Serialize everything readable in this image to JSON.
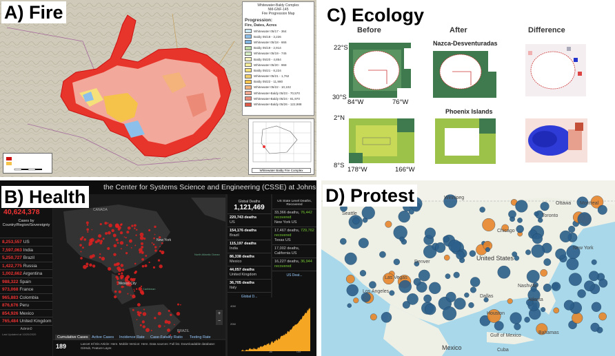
{
  "panels": {
    "fire": {
      "label": "A)  Fire",
      "legend_title": [
        "Whitewater-Baldy Complex",
        "NM-GNF-145",
        "Fire Progression Map"
      ],
      "progression_title": "Progression:",
      "progression_sub": "Fire, Dates, Acres",
      "progression": [
        {
          "text": "Whitewater 05/17 - 364",
          "color": "#cde8f5"
        },
        {
          "text": "Baldy 05/18 - 3,226",
          "color": "#8cc0ea"
        },
        {
          "text": "Whitewater 05/18 - 666",
          "color": "#7fb3e0"
        },
        {
          "text": "Baldy 05/19 - 2,914",
          "color": "#b7dba2"
        },
        {
          "text": "Whitewater 05/19 - 745",
          "color": "#d7eec4"
        },
        {
          "text": "Baldy 05/20 - 4,854",
          "color": "#f2f0b6"
        },
        {
          "text": "Whitewater 05/20 - 968",
          "color": "#f8ef9c"
        },
        {
          "text": "Baldy 05/21 - 8,224",
          "color": "#f5e07a"
        },
        {
          "text": "Whitewater 05/21 - 1,762",
          "color": "#f3cf6a"
        },
        {
          "text": "Baldy 05/22 - 11,980",
          "color": "#f5c34a"
        },
        {
          "text": "Whitewater 05/22 - 10,102",
          "color": "#f3b37a"
        },
        {
          "text": "Whitewater-Baldy 05/23 - 70,570",
          "color": "#f0a78f"
        },
        {
          "text": "Whitewater-Baldy 05/24 - 81,970",
          "color": "#ec8a78"
        },
        {
          "text": "Whitewater-Baldy 05/26 - 122,988",
          "color": "#e05a4a"
        }
      ],
      "inset_caption": "Whitewater Baldy Fire Complex"
    },
    "ecology": {
      "label": "C) Ecology",
      "columns": [
        "Before",
        "After",
        "Difference"
      ],
      "subtitles": [
        "Nazca-Desventuradas",
        "Phoenix Islands"
      ],
      "axis_labels": {
        "lat_top": [
          "22°S",
          "30°S"
        ],
        "lon_top": [
          "84°W",
          "76°W"
        ],
        "lat_bottom": [
          "2°N",
          "8°S"
        ],
        "lon_bottom": [
          "178°W",
          "166°W"
        ]
      }
    },
    "health": {
      "label": "B) Health",
      "header": "the Center for Systems Science and Engineering (CSSE) at Johns Ho...",
      "total_cases": "40,624,378",
      "cases_header": "Cases by Country/Region/Sovereignty",
      "countries": [
        {
          "n": "8,253,557",
          "c": "US"
        },
        {
          "n": "7,597,063",
          "c": "India"
        },
        {
          "n": "5,250,727",
          "c": "Brazil"
        },
        {
          "n": "1,422,775",
          "c": "Russia"
        },
        {
          "n": "1,002,662",
          "c": "Argentina"
        },
        {
          "n": "988,322",
          "c": "Spain"
        },
        {
          "n": "973,068",
          "c": "France"
        },
        {
          "n": "965,883",
          "c": "Colombia"
        },
        {
          "n": "876,676",
          "c": "Peru"
        },
        {
          "n": "854,926",
          "c": "Mexico"
        },
        {
          "n": "765,484",
          "c": "United Kingdom"
        }
      ],
      "admin_label": "Admin0",
      "last_updated": "Last Updated at 10/20/2020",
      "global_deaths_label": "Global Deaths",
      "global_deaths": "1,121,469",
      "deaths_list": [
        {
          "n": "220,743 deaths",
          "c": "US"
        },
        {
          "n": "154,176 deaths",
          "c": "Brazil"
        },
        {
          "n": "115,197 deaths",
          "c": "India"
        },
        {
          "n": "86,338 deaths",
          "c": "Mexico"
        },
        {
          "n": "44,057 deaths",
          "c": "United Kingdom"
        },
        {
          "n": "36,705 deaths",
          "c": "Italy"
        }
      ],
      "us_state_label": "US State Level Deaths, Recovered",
      "us_states": [
        {
          "d": "33,366 deaths,",
          "r": "76,442 recovered",
          "s": "New York US"
        },
        {
          "d": "17,467 deaths,",
          "r": "729,762 recovered",
          "s": "Texas US"
        },
        {
          "d": "17,002 deaths,",
          "r": "",
          "s": "California US"
        },
        {
          "d": "16,227 deaths,",
          "r": "36,944 recovered",
          "s": ""
        }
      ],
      "map_labels": [
        "CANADA",
        "North Atlantic Ocean",
        "New York",
        "Mexico City",
        "BRAZIL",
        "Caribbean"
      ],
      "tabs": [
        "Cumulative Cases",
        "Active Cases",
        "Incidence Rate",
        "Case-Fatality Ratio",
        "Testing Rate"
      ],
      "panel_tabs_left": "Global D...",
      "panel_tabs_right": "US Deat...",
      "count_box": "189",
      "footer_text": "Lancet Inf Dis Article: Here. Mobile Version: Here. Data sources: Full list. Downloadable database: GitHub, Feature Layer.",
      "chart_axis": [
        "Jul",
        "Oct"
      ],
      "chart_y": [
        "40M",
        "20M"
      ]
    },
    "protest": {
      "label": "D) Protest",
      "map_labels": [
        "United States",
        "Mexico",
        "Cuba",
        "Bahamas",
        "Gulf of Mexico",
        "Chicago",
        "Los Angeles",
        "Las Vegas",
        "Denver",
        "Dallas",
        "Houston",
        "Ottawa",
        "Montreal",
        "Toronto",
        "Nashville",
        "Atlanta",
        "New York",
        "Winnipeg",
        "Calgary",
        "Seattle"
      ]
    }
  }
}
